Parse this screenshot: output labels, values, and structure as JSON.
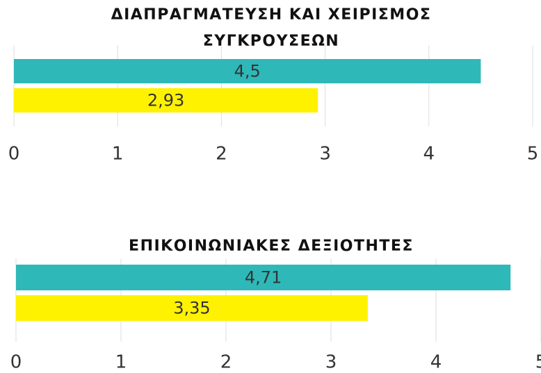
{
  "chart_data": [
    {
      "type": "bar",
      "orientation": "horizontal",
      "title": "ΔΙΑΠΡΑΓΜΑΤΕΥΣΗ ΚΑΙ ΧΕΙΡΙΣΜΟΣ ΣΥΓΚΡΟΥΣΕΩΝ",
      "values": [
        4.5,
        2.93
      ],
      "value_labels": [
        "4,5",
        "2,93"
      ],
      "colors": [
        "#2fb8b8",
        "#fff200"
      ],
      "xlim": [
        0,
        5
      ],
      "xticks": [
        0,
        1,
        2,
        3,
        4,
        5
      ],
      "grid": true
    },
    {
      "type": "bar",
      "orientation": "horizontal",
      "title": "ΕΠΙΚΟΙΝΩΝΙΑΚΕΣ ΔΕΞΙΟΤΗΤΕΣ",
      "values": [
        4.71,
        3.35
      ],
      "value_labels": [
        "4,71",
        "3,35"
      ],
      "colors": [
        "#2fb8b8",
        "#fff200"
      ],
      "xlim": [
        0,
        5
      ],
      "xticks": [
        0,
        1,
        2,
        3,
        4,
        5
      ],
      "grid": true
    }
  ]
}
